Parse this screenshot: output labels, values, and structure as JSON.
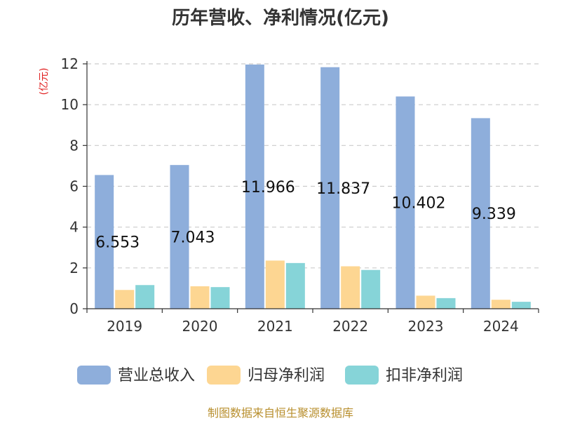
{
  "chart_data": {
    "type": "bar",
    "title": "历年营收、净利情况(亿元)",
    "ylabel": "(亿元)",
    "categories": [
      "2019",
      "2020",
      "2021",
      "2022",
      "2023",
      "2024"
    ],
    "ylim": [
      0,
      12
    ],
    "yticks": [
      0,
      2,
      4,
      6,
      8,
      10,
      12
    ],
    "grid": true,
    "legend_position": "bottom",
    "series": [
      {
        "name": "营业总收入",
        "color": "#8eaedb",
        "values": [
          6.553,
          7.043,
          11.966,
          11.837,
          10.402,
          9.339
        ],
        "labels": [
          "6.553",
          "7.043",
          "11.966",
          "11.837",
          "10.402",
          "9.339"
        ]
      },
      {
        "name": "归母净利润",
        "color": "#fdd692",
        "values": [
          0.92,
          1.1,
          2.36,
          2.08,
          0.64,
          0.44
        ]
      },
      {
        "name": "扣非净利润",
        "color": "#86d4d8",
        "values": [
          1.16,
          1.06,
          2.24,
          1.9,
          0.52,
          0.34
        ]
      }
    ]
  },
  "source": "制图数据来自恒生聚源数据库",
  "colors": {
    "title": "#333333",
    "ylabel": "#e02020",
    "axis": "#333333",
    "grid": "#cccccc",
    "source": "#b88f2e"
  }
}
